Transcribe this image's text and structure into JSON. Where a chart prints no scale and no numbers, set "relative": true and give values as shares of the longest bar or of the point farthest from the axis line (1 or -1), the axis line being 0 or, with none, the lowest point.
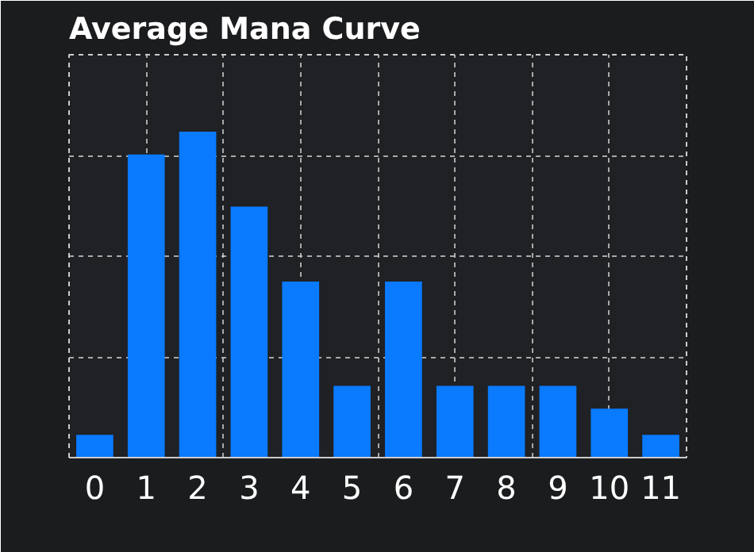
{
  "chart_data": {
    "type": "bar",
    "title": "Average Mana Curve",
    "relative": true,
    "grid": true,
    "color": "#0a7aff",
    "categories": [
      "0",
      "1",
      "2",
      "3",
      "4",
      "5",
      "6",
      "7",
      "8",
      "9",
      "10",
      "11"
    ],
    "values": [
      0.07,
      0.93,
      1,
      0.77,
      0.54,
      0.22,
      0.54,
      0.22,
      0.22,
      0.22,
      0.15,
      0.07
    ]
  }
}
